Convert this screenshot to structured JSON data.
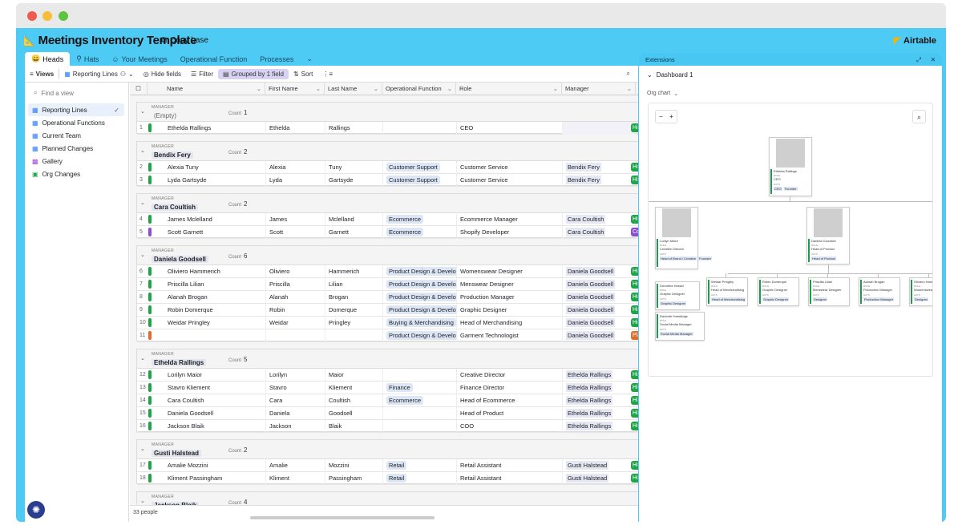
{
  "base": {
    "title": "Meetings Inventory Template",
    "copy_base": "Copy base",
    "brand": "Airtable"
  },
  "colors": {
    "accent": "#4ecbf5",
    "green": "#20a44a",
    "purple": "#8e4bd6",
    "orange": "#e06b2a",
    "grouped_bg": "#d7d2f4"
  },
  "tabs": [
    {
      "label": "Heads",
      "icon": "emoji-icon"
    },
    {
      "label": "Hats",
      "icon": "hat-icon"
    },
    {
      "label": "Your Meetings",
      "icon": "people-icon"
    },
    {
      "label": "Operational Function"
    },
    {
      "label": "Processes"
    }
  ],
  "toolbar": {
    "views": "Views",
    "view_name": "Reporting Lines",
    "hide": "Hide fields",
    "filter": "Filter",
    "group": "Grouped by 1 field",
    "sort": "Sort"
  },
  "sidebar": {
    "find_placeholder": "Find a view",
    "items": [
      "Reporting Lines",
      "Operational Functions",
      "Current Team",
      "Planned Changes",
      "Gallery",
      "Org Changes"
    ]
  },
  "columns": [
    "Name",
    "First Name",
    "Last Name",
    "Operational Function",
    "Role",
    "Manager",
    "Status"
  ],
  "group_label": "MANAGER",
  "count_label": "Count",
  "groups": [
    {
      "manager": "(Empty)",
      "count": "1",
      "rows": [
        {
          "n": "1",
          "name": "Ethelda Rallings",
          "first": "Ethelda",
          "last": "Rallings",
          "func": "",
          "role": "CEO",
          "mgr": "",
          "status": "Hired",
          "bar": "#20a44a"
        }
      ]
    },
    {
      "manager": "Bendix Fery",
      "count": "2",
      "rows": [
        {
          "n": "2",
          "name": "Alexia Tuny",
          "first": "Alexia",
          "last": "Tuny",
          "func": "Customer Support",
          "role": "Customer Service",
          "mgr": "Bendix Fery",
          "status": "Hired",
          "bar": "#20a44a"
        },
        {
          "n": "3",
          "name": "Lyda Gartsyde",
          "first": "Lyda",
          "last": "Gartsyde",
          "func": "Customer Support",
          "role": "Customer Service",
          "mgr": "Bendix Fery",
          "status": "Hired",
          "bar": "#20a44a"
        }
      ]
    },
    {
      "manager": "Cara Coultish",
      "count": "2",
      "rows": [
        {
          "n": "4",
          "name": "James Mclelland",
          "first": "James",
          "last": "Mclelland",
          "func": "Ecommerce",
          "role": "Ecommerce Manager",
          "mgr": "Cara Coultish",
          "status": "Hired",
          "bar": "#20a44a"
        },
        {
          "n": "5",
          "name": "Scott Garnett",
          "first": "Scott",
          "last": "Garnett",
          "func": "Ecommerce",
          "role": "Shopify Developer",
          "mgr": "Cara Coultish",
          "status": "Contract",
          "bar": "#8e4bd6"
        }
      ]
    },
    {
      "manager": "Daniela Goodsell",
      "count": "6",
      "rows": [
        {
          "n": "6",
          "name": "Oliviero Hammerich",
          "first": "Oliviero",
          "last": "Hammerich",
          "func": "Product Design & Development",
          "role": "Womenswear Designer",
          "mgr": "Daniela Goodsell",
          "status": "Hired",
          "bar": "#20a44a"
        },
        {
          "n": "7",
          "name": "Priscilla Lilian",
          "first": "Priscilla",
          "last": "Lilian",
          "func": "Product Design & Development",
          "role": "Menswear Designer",
          "mgr": "Daniela Goodsell",
          "status": "Hired",
          "bar": "#20a44a"
        },
        {
          "n": "8",
          "name": "Alanah Brogan",
          "first": "Alanah",
          "last": "Brogan",
          "func": "Product Design & Development",
          "role": "Production Manager",
          "mgr": "Daniela Goodsell",
          "status": "Hired",
          "bar": "#20a44a"
        },
        {
          "n": "9",
          "name": "Robin Domerque",
          "first": "Robin",
          "last": "Domerque",
          "func": "Product Design & Development",
          "role": "Graphic Designer",
          "mgr": "Daniela Goodsell",
          "status": "Hired",
          "bar": "#20a44a"
        },
        {
          "n": "10",
          "name": "Weidar Pringley",
          "first": "Weidar",
          "last": "Pringley",
          "func": "Buying & Merchandising",
          "role": "Head of Merchandising",
          "mgr": "Daniela Goodsell",
          "status": "Hired",
          "bar": "#20a44a"
        },
        {
          "n": "11",
          "name": "",
          "first": "",
          "last": "",
          "func": "Product Design & Development",
          "role": "Garment Technologist",
          "mgr": "Daniela Goodsell",
          "status": "Planned",
          "bar": "#e06b2a"
        }
      ]
    },
    {
      "manager": "Ethelda Rallings",
      "count": "5",
      "rows": [
        {
          "n": "12",
          "name": "Lorilyn Maior",
          "first": "Lorilyn",
          "last": "Maior",
          "func": "",
          "role": "Creative Director",
          "mgr": "Ethelda Rallings",
          "status": "Hired",
          "bar": "#20a44a"
        },
        {
          "n": "13",
          "name": "Stavro Kliement",
          "first": "Stavro",
          "last": "Kliement",
          "func": "Finance",
          "role": "Finance Director",
          "mgr": "Ethelda Rallings",
          "status": "Hired",
          "bar": "#20a44a"
        },
        {
          "n": "14",
          "name": "Cara Coultish",
          "first": "Cara",
          "last": "Coultish",
          "func": "Ecommerce",
          "role": "Head of Ecommerce",
          "mgr": "Ethelda Rallings",
          "status": "Hired",
          "bar": "#20a44a"
        },
        {
          "n": "15",
          "name": "Daniela Goodsell",
          "first": "Daniela",
          "last": "Goodsell",
          "func": "",
          "role": "Head of Product",
          "mgr": "Ethelda Rallings",
          "status": "Hired",
          "bar": "#20a44a"
        },
        {
          "n": "16",
          "name": "Jackson Blaik",
          "first": "Jackson",
          "last": "Blaik",
          "func": "",
          "role": "COO",
          "mgr": "Ethelda Rallings",
          "status": "Hired",
          "bar": "#20a44a"
        }
      ]
    },
    {
      "manager": "Gusti Halstead",
      "count": "2",
      "rows": [
        {
          "n": "17",
          "name": "Amalie Mozzini",
          "first": "Amalie",
          "last": "Mozzini",
          "func": "Retail",
          "role": "Retail Assistant",
          "mgr": "Gusti Halstead",
          "status": "Hired",
          "bar": "#20a44a"
        },
        {
          "n": "18",
          "name": "Kliment Passingham",
          "first": "Kliment",
          "last": "Passingham",
          "func": "Retail",
          "role": "Retail Assistant",
          "mgr": "Gusti Halstead",
          "status": "Hired",
          "bar": "#20a44a"
        }
      ]
    },
    {
      "manager": "Jackson Blaik",
      "count": "4",
      "rows": []
    }
  ],
  "footer": {
    "count": "33 people"
  },
  "extensions": {
    "title": "Extensions",
    "dashboard": "Dashboard 1",
    "org_chart": "Org chart"
  },
  "org": {
    "role_label": "ROLE",
    "hats_label": "HATS",
    "top": {
      "name": "Ethelda Rallings",
      "role": "CEO",
      "hats": [
        "CEO",
        "Founder"
      ]
    },
    "mid": [
      {
        "name": "Lorilyn Maior",
        "role": "Creative Director",
        "hats": [
          "Head of Brand / Creative",
          "Founder"
        ]
      },
      {
        "name": "Daniela Goodsell",
        "role": "Head of Product",
        "hats": [
          "Head of Product"
        ]
      }
    ],
    "sub_left": [
      {
        "name": "Dorothea Hessel",
        "role": "Graphic Designer",
        "hats": [
          "Graphic Designer"
        ]
      },
      {
        "name": "Rachelle Hambidge",
        "role": "Social Media Manager",
        "hats": [
          "Social Media Manager"
        ]
      }
    ],
    "sub_right": [
      {
        "name": "Weidar Pringley",
        "role": "Head of Merchandising",
        "hats": [
          "Head of Merchandising"
        ]
      },
      {
        "name": "Robin Domerque",
        "role": "Graphic Designer",
        "hats": [
          "Graphic Designer"
        ]
      },
      {
        "name": "Priscilla Lilian",
        "role": "Menswear Designer",
        "hats": [
          "Designer"
        ]
      },
      {
        "name": "Alanah Brogan",
        "role": "Production Manager",
        "hats": [
          "Production Manager"
        ]
      },
      {
        "name": "Oliviero Hammerich",
        "role": "Womenswear Designer",
        "hats": [
          "Designer"
        ]
      }
    ]
  }
}
